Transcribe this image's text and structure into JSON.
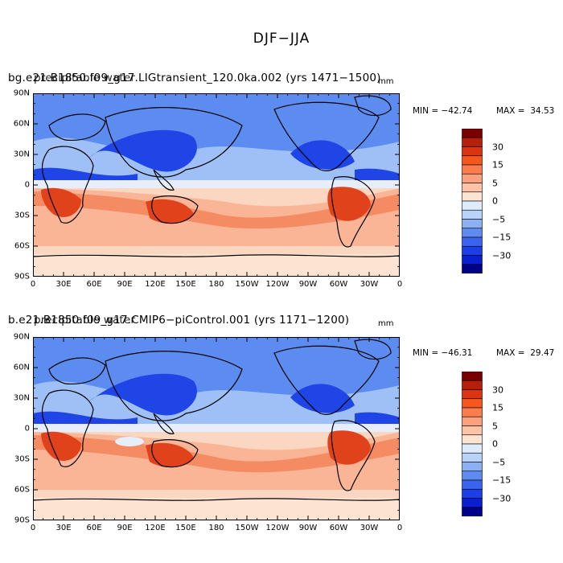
{
  "figure": {
    "title": "DJF−JJA",
    "units": "mm"
  },
  "panels": [
    {
      "title_primary": "bg.e21.B1850.f09_g17.LIGtransient_120.0ka.002 (yrs 1471−1500)",
      "title_overlay": "precipitable water",
      "min_label": "MIN = −42.74",
      "max_label": "MAX =  34.53",
      "min_value": -42.74,
      "max_value": 34.53
    },
    {
      "title_primary": "b.e21.B1850.f09_g17.CMIP6−piControl.001 (yrs 1171−1200)",
      "title_overlay": "precipitable water",
      "min_label": "MIN = −46.31",
      "max_label": "MAX =  29.47",
      "min_value": -46.31,
      "max_value": 29.47
    }
  ],
  "axes": {
    "x_ticks": [
      "0",
      "30E",
      "60E",
      "90E",
      "120E",
      "150E",
      "180",
      "150W",
      "120W",
      "90W",
      "60W",
      "30W",
      "0"
    ],
    "y_ticks": [
      "90N",
      "60N",
      "30N",
      "0",
      "30S",
      "60S",
      "90S"
    ]
  },
  "colorbar": {
    "labels": [
      "30",
      "15",
      "5",
      "0",
      "−5",
      "−15",
      "−30"
    ],
    "colors": [
      "#7a0000",
      "#b5200a",
      "#dd3310",
      "#f5571e",
      "#fb7d4e",
      "#fba17e",
      "#fcc3a6",
      "#fde3d2",
      "#dcecfb",
      "#b8d2fa",
      "#8bb0f4",
      "#5e8bf0",
      "#3a64ed",
      "#1c3ee8",
      "#0a1fd0",
      "#00008a"
    ]
  },
  "palette": {
    "ocean_warm": "#fbd6c1",
    "ocean_hot": "#f58b62",
    "land_hot": "#e0431c",
    "cool_light": "#9fc0f6",
    "cool_mid": "#5d8cf0",
    "cool_deep": "#1f45e6",
    "near_zero": "#e6eefc",
    "coast": "#000000"
  }
}
